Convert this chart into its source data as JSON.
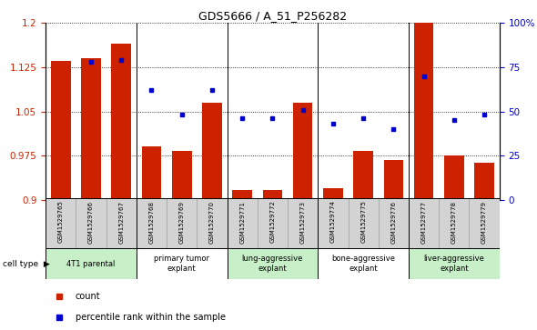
{
  "title": "GDS5666 / A_51_P256282",
  "samples": [
    "GSM1529765",
    "GSM1529766",
    "GSM1529767",
    "GSM1529768",
    "GSM1529769",
    "GSM1529770",
    "GSM1529771",
    "GSM1529772",
    "GSM1529773",
    "GSM1529774",
    "GSM1529775",
    "GSM1529776",
    "GSM1529777",
    "GSM1529778",
    "GSM1529779"
  ],
  "bar_values": [
    1.135,
    1.14,
    1.165,
    0.99,
    0.983,
    1.065,
    0.916,
    0.916,
    1.065,
    0.92,
    0.983,
    0.968,
    1.2,
    0.975,
    0.962
  ],
  "dot_values": [
    null,
    78,
    79,
    62,
    48,
    62,
    46,
    46,
    51,
    43,
    46,
    40,
    70,
    45,
    48
  ],
  "ylim_left": [
    0.9,
    1.2
  ],
  "ylim_right": [
    0,
    100
  ],
  "yticks_left": [
    0.9,
    0.975,
    1.05,
    1.125,
    1.2
  ],
  "yticks_right": [
    0,
    25,
    50,
    75,
    100
  ],
  "cell_type_groups": [
    {
      "label": "4T1 parental",
      "start": 0,
      "end": 3,
      "color": "#c8f0c8"
    },
    {
      "label": "primary tumor\nexplant",
      "start": 3,
      "end": 6,
      "color": "#ffffff"
    },
    {
      "label": "lung-aggressive\nexplant",
      "start": 6,
      "end": 9,
      "color": "#c8f0c8"
    },
    {
      "label": "bone-aggressive\nexplant",
      "start": 9,
      "end": 12,
      "color": "#ffffff"
    },
    {
      "label": "liver-aggressive\nexplant",
      "start": 12,
      "end": 15,
      "color": "#c8f0c8"
    }
  ],
  "bar_color": "#cc2200",
  "dot_color": "#0000cc",
  "group_boundaries": [
    3,
    6,
    9,
    12
  ],
  "cell_type_label": "cell type",
  "legend_count": "count",
  "legend_percentile": "percentile rank within the sample",
  "tick_label_color_left": "#cc2200",
  "tick_label_color_right": "#0000cc"
}
